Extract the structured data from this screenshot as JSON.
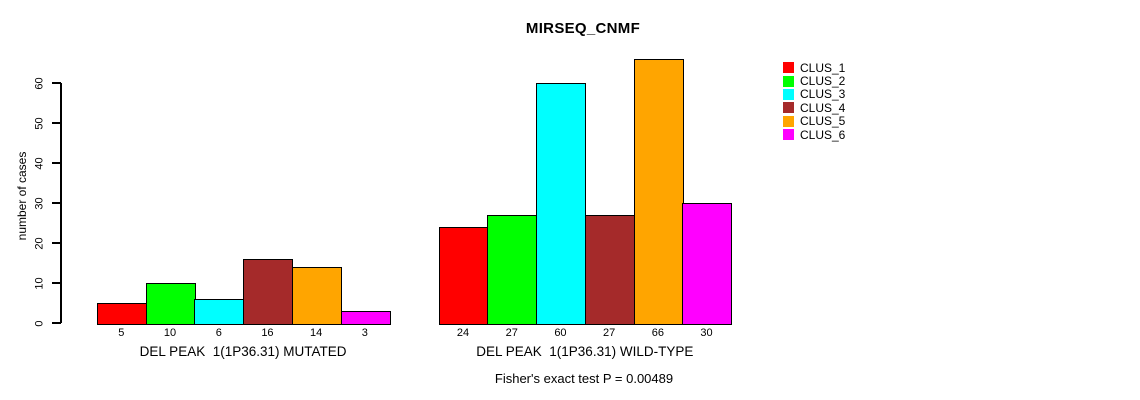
{
  "chart_data": {
    "type": "bar",
    "title": "MIRSEQ_CNMF",
    "ylabel": "number of cases",
    "xlabel": "",
    "ylim": [
      0,
      66
    ],
    "yticks": [
      0,
      10,
      20,
      30,
      40,
      50,
      60
    ],
    "categories": [
      "CLUS_1",
      "CLUS_2",
      "CLUS_3",
      "CLUS_4",
      "CLUS_5",
      "CLUS_6"
    ],
    "colors": [
      "#FF0000",
      "#00FF00",
      "#00FFFF",
      "#A52A2A",
      "#FFA500",
      "#FF00FF"
    ],
    "groups": [
      {
        "label": "DEL PEAK  1(1P36.31) MUTATED",
        "values": [
          5,
          10,
          6,
          16,
          14,
          3
        ]
      },
      {
        "label": "DEL PEAK  1(1P36.31) WILD-TYPE",
        "values": [
          24,
          27,
          60,
          27,
          66,
          30
        ]
      }
    ],
    "bar_value_labels": [
      [
        "5",
        "10",
        "6",
        "16",
        "14",
        "3"
      ],
      [
        "24",
        "27",
        "60",
        "27",
        "66",
        "30"
      ]
    ],
    "annotation": "Fisher's exact test P = 0.00489",
    "legend_position": "right",
    "grid": false
  },
  "legend": {
    "entries": [
      {
        "label": "CLUS_1",
        "color": "#FF0000"
      },
      {
        "label": "CLUS_2",
        "color": "#00FF00"
      },
      {
        "label": "CLUS_3",
        "color": "#00FFFF"
      },
      {
        "label": "CLUS_4",
        "color": "#A52A2A"
      },
      {
        "label": "CLUS_5",
        "color": "#FFA500"
      },
      {
        "label": "CLUS_6",
        "color": "#FF00FF"
      }
    ]
  }
}
